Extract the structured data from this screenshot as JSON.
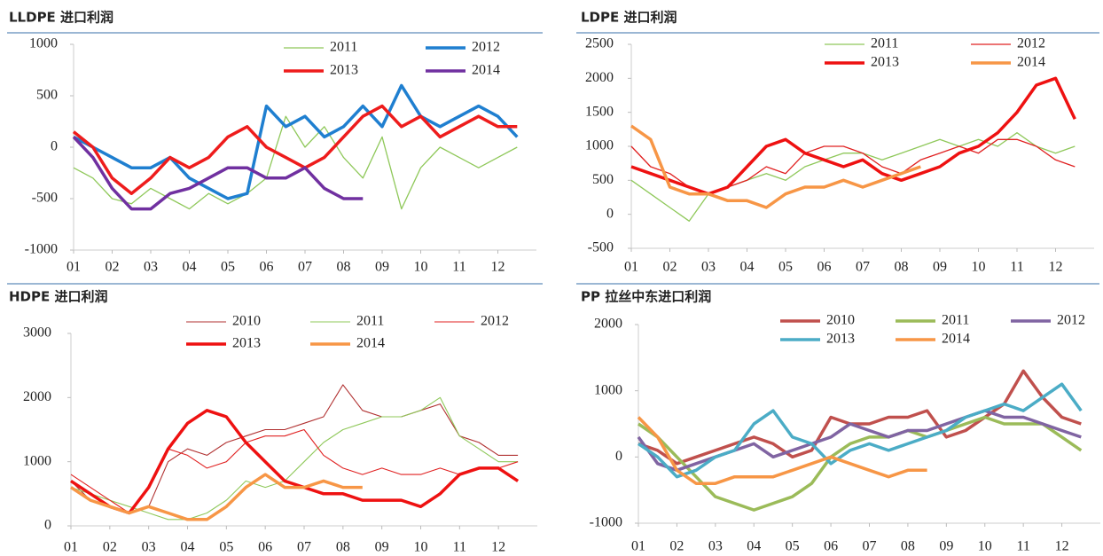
{
  "chart_data": [
    {
      "type": "line",
      "title": "LLDPE 进口利润",
      "x": [
        1,
        1.5,
        2,
        2.5,
        3,
        3.5,
        4,
        4.5,
        5,
        5.5,
        6,
        6.5,
        7,
        7.5,
        8,
        8.5,
        9,
        9.5,
        10,
        10.5,
        11,
        11.5,
        12,
        12.5
      ],
      "xlim": [
        1,
        13
      ],
      "xticks": [
        {
          "value": 1,
          "label": "01"
        },
        {
          "value": 2,
          "label": "02"
        },
        {
          "value": 3,
          "label": "03"
        },
        {
          "value": 4,
          "label": "04"
        },
        {
          "value": 5,
          "label": "05"
        },
        {
          "value": 6,
          "label": "06"
        },
        {
          "value": 7,
          "label": "07"
        },
        {
          "value": 8,
          "label": "08"
        },
        {
          "value": 9,
          "label": "09"
        },
        {
          "value": 10,
          "label": "10"
        },
        {
          "value": 11,
          "label": "11"
        },
        {
          "value": 12,
          "label": "12"
        }
      ],
      "ylim": [
        -1000,
        1000
      ],
      "yticks": [
        -1000,
        -500,
        0,
        500,
        1000
      ],
      "series": [
        {
          "name": "2011",
          "color": "#8fc85a",
          "values": [
            -200,
            -300,
            -500,
            -550,
            -400,
            -500,
            -600,
            -450,
            -550,
            -450,
            -300,
            300,
            0,
            200,
            -100,
            -300,
            100,
            -600,
            -200,
            0,
            -100,
            -200,
            -100,
            0
          ]
        },
        {
          "name": "2012",
          "color": "#1f7fd0",
          "values": [
            100,
            0,
            -100,
            -200,
            -200,
            -100,
            -300,
            -400,
            -500,
            -450,
            400,
            200,
            300,
            100,
            200,
            400,
            200,
            600,
            300,
            200,
            300,
            400,
            300,
            100
          ]
        },
        {
          "name": "2013",
          "color": "#ee1c1c",
          "values": [
            150,
            0,
            -300,
            -450,
            -300,
            -100,
            -200,
            -100,
            100,
            200,
            0,
            -100,
            -200,
            -100,
            100,
            300,
            400,
            200,
            300,
            100,
            200,
            300,
            200,
            200
          ]
        },
        {
          "name": "2014",
          "color": "#7030a0",
          "values": [
            100,
            -100,
            -400,
            -600,
            -600,
            -450,
            -400,
            -300,
            -200,
            -200,
            -300,
            -300,
            -200,
            -400,
            -500,
            -500,
            null,
            null,
            null,
            null,
            null,
            null,
            null,
            null
          ]
        }
      ]
    },
    {
      "type": "line",
      "title": "LDPE 进口利润",
      "x": [
        1,
        1.5,
        2,
        2.5,
        3,
        3.5,
        4,
        4.5,
        5,
        5.5,
        6,
        6.5,
        7,
        7.5,
        8,
        8.5,
        9,
        9.5,
        10,
        10.5,
        11,
        11.5,
        12,
        12.5
      ],
      "xlim": [
        1,
        13
      ],
      "xticks": [
        {
          "value": 1,
          "label": "01"
        },
        {
          "value": 2,
          "label": "02"
        },
        {
          "value": 3,
          "label": "03"
        },
        {
          "value": 4,
          "label": "04"
        },
        {
          "value": 5,
          "label": "05"
        },
        {
          "value": 6,
          "label": "06"
        },
        {
          "value": 7,
          "label": "07"
        },
        {
          "value": 8,
          "label": "08"
        },
        {
          "value": 9,
          "label": "09"
        },
        {
          "value": 10,
          "label": "10"
        },
        {
          "value": 11,
          "label": "11"
        },
        {
          "value": 12,
          "label": "12"
        }
      ],
      "ylim": [
        -500,
        2500
      ],
      "yticks": [
        -500,
        0,
        500,
        1000,
        1500,
        2000,
        2500
      ],
      "series": [
        {
          "name": "2011",
          "color": "#8fc85a",
          "values": [
            500,
            300,
            100,
            -100,
            300,
            400,
            500,
            600,
            500,
            700,
            800,
            900,
            900,
            800,
            900,
            1000,
            1100,
            1000,
            1100,
            1000,
            1200,
            1000,
            900,
            1000
          ]
        },
        {
          "name": "2012",
          "color": "#e02020",
          "values": [
            1000,
            700,
            600,
            400,
            300,
            400,
            500,
            700,
            600,
            900,
            1000,
            1000,
            900,
            700,
            600,
            800,
            900,
            1000,
            900,
            1100,
            1100,
            1000,
            800,
            700
          ]
        },
        {
          "name": "2013",
          "color": "#ee1111",
          "values": [
            700,
            600,
            500,
            400,
            300,
            400,
            700,
            1000,
            1100,
            900,
            800,
            700,
            800,
            600,
            500,
            600,
            700,
            900,
            1000,
            1200,
            1500,
            1900,
            2000,
            1400
          ]
        },
        {
          "name": "2014",
          "color": "#f79646",
          "values": [
            1300,
            1100,
            400,
            300,
            300,
            200,
            200,
            100,
            300,
            400,
            400,
            500,
            400,
            500,
            600,
            700,
            null,
            null,
            null,
            null,
            null,
            null,
            null,
            null
          ]
        }
      ]
    },
    {
      "type": "line",
      "title": "HDPE 进口利润",
      "x": [
        1,
        1.5,
        2,
        2.5,
        3,
        3.5,
        4,
        4.5,
        5,
        5.5,
        6,
        6.5,
        7,
        7.5,
        8,
        8.5,
        9,
        9.5,
        10,
        10.5,
        11,
        11.5,
        12,
        12.5
      ],
      "xlim": [
        1,
        13
      ],
      "xticks": [
        {
          "value": 1,
          "label": "01"
        },
        {
          "value": 2,
          "label": "02"
        },
        {
          "value": 3,
          "label": "03"
        },
        {
          "value": 4,
          "label": "04"
        },
        {
          "value": 5,
          "label": "05"
        },
        {
          "value": 6,
          "label": "06"
        },
        {
          "value": 7,
          "label": "07"
        },
        {
          "value": 8,
          "label": "08"
        },
        {
          "value": 9,
          "label": "09"
        },
        {
          "value": 10,
          "label": "10"
        },
        {
          "value": 11,
          "label": "11"
        },
        {
          "value": 12,
          "label": "12"
        }
      ],
      "ylim": [
        0,
        3000
      ],
      "yticks": [
        0,
        1000,
        2000,
        3000
      ],
      "series": [
        {
          "name": "2010",
          "color": "#b03030",
          "values": [
            700,
            400,
            300,
            200,
            300,
            1000,
            1200,
            1100,
            1300,
            1400,
            1500,
            1500,
            1600,
            1700,
            2200,
            1800,
            1700,
            1700,
            1800,
            1900,
            1400,
            1300,
            1100,
            1100
          ]
        },
        {
          "name": "2011",
          "color": "#8fc85a",
          "values": [
            600,
            500,
            400,
            300,
            200,
            100,
            100,
            200,
            400,
            700,
            600,
            700,
            1000,
            1300,
            1500,
            1600,
            1700,
            1700,
            1800,
            2000,
            1400,
            1200,
            1000,
            1000
          ]
        },
        {
          "name": "2012",
          "color": "#e02020",
          "values": [
            800,
            600,
            400,
            200,
            600,
            1200,
            1100,
            900,
            1000,
            1300,
            1400,
            1400,
            1500,
            1100,
            900,
            800,
            900,
            800,
            800,
            900,
            800,
            900,
            900,
            1000
          ]
        },
        {
          "name": "2013",
          "color": "#ee1111",
          "values": [
            700,
            500,
            300,
            200,
            600,
            1200,
            1600,
            1800,
            1700,
            1300,
            1000,
            700,
            600,
            500,
            500,
            400,
            400,
            400,
            300,
            500,
            800,
            900,
            900,
            700
          ]
        },
        {
          "name": "2014",
          "color": "#f79646",
          "values": [
            600,
            400,
            300,
            200,
            300,
            200,
            100,
            100,
            300,
            600,
            800,
            600,
            600,
            700,
            600,
            600,
            null,
            null,
            null,
            null,
            null,
            null,
            null,
            null
          ]
        }
      ]
    },
    {
      "type": "line",
      "title": "PP 拉丝中东进口利润",
      "x": [
        1,
        1.5,
        2,
        2.5,
        3,
        3.5,
        4,
        4.5,
        5,
        5.5,
        6,
        6.5,
        7,
        7.5,
        8,
        8.5,
        9,
        9.5,
        10,
        10.5,
        11,
        11.5,
        12,
        12.5
      ],
      "xlim": [
        1,
        13
      ],
      "xticks": [
        {
          "value": 1,
          "label": "01"
        },
        {
          "value": 2,
          "label": "02"
        },
        {
          "value": 3,
          "label": "03"
        },
        {
          "value": 4,
          "label": "04"
        },
        {
          "value": 5,
          "label": "05"
        },
        {
          "value": 6,
          "label": "06"
        },
        {
          "value": 7,
          "label": "07"
        },
        {
          "value": 8,
          "label": "08"
        },
        {
          "value": 9,
          "label": "09"
        },
        {
          "value": 10,
          "label": "10"
        },
        {
          "value": 11,
          "label": "11"
        },
        {
          "value": 12,
          "label": "12"
        }
      ],
      "ylim": [
        -1000,
        2000
      ],
      "yticks": [
        -1000,
        0,
        1000,
        2000
      ],
      "series": [
        {
          "name": "2010",
          "color": "#c0504d",
          "values": [
            200,
            100,
            -100,
            0,
            100,
            200,
            300,
            200,
            0,
            100,
            600,
            500,
            500,
            600,
            600,
            700,
            300,
            400,
            600,
            800,
            1300,
            900,
            600,
            500
          ]
        },
        {
          "name": "2011",
          "color": "#9bbb59",
          "values": [
            500,
            300,
            0,
            -300,
            -600,
            -700,
            -800,
            -700,
            -600,
            -400,
            0,
            200,
            300,
            300,
            400,
            300,
            400,
            500,
            600,
            500,
            500,
            500,
            300,
            100
          ]
        },
        {
          "name": "2012",
          "color": "#8064a2",
          "values": [
            300,
            -100,
            -200,
            -100,
            0,
            100,
            200,
            0,
            100,
            200,
            300,
            500,
            400,
            300,
            400,
            400,
            500,
            600,
            700,
            600,
            600,
            500,
            400,
            300
          ]
        },
        {
          "name": "2013",
          "color": "#4bacc6",
          "values": [
            200,
            0,
            -300,
            -200,
            0,
            100,
            500,
            700,
            300,
            200,
            -100,
            100,
            200,
            100,
            200,
            300,
            400,
            600,
            700,
            800,
            700,
            900,
            1100,
            700
          ]
        },
        {
          "name": "2014",
          "color": "#f79646",
          "values": [
            600,
            300,
            -200,
            -400,
            -400,
            -300,
            -300,
            -300,
            -200,
            -100,
            0,
            -100,
            -200,
            -300,
            -200,
            -200,
            null,
            null,
            null,
            null,
            null,
            null,
            null,
            null
          ]
        }
      ]
    }
  ]
}
